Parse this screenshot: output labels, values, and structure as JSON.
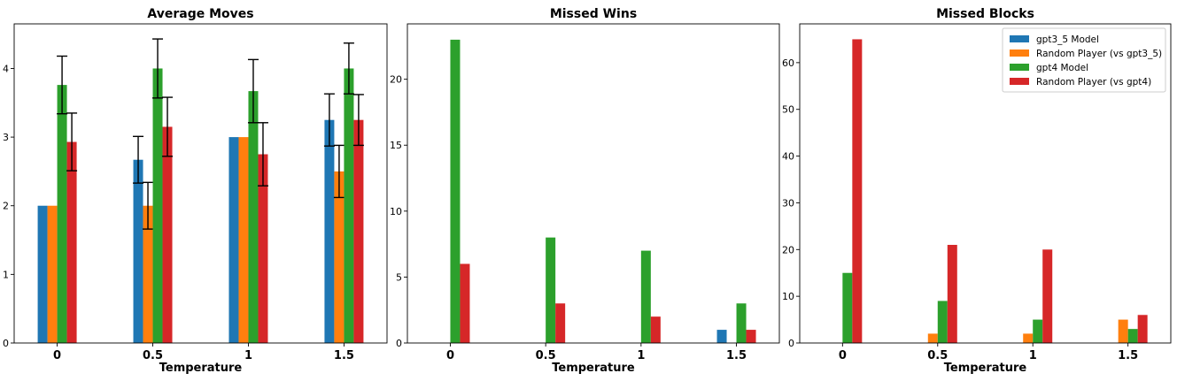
{
  "chart_data": [
    {
      "type": "bar",
      "title": "Average Moves",
      "xlabel": "Temperature",
      "ylabel": "",
      "categories": [
        "0",
        "0.5",
        "1",
        "1.5"
      ],
      "ylim": [
        0,
        4.65
      ],
      "yticks": [
        0,
        1,
        2,
        3,
        4
      ],
      "grid": false,
      "legend": "none",
      "series": [
        {
          "name": "gpt3_5 Model",
          "color": "#1f77b4",
          "values": [
            2.0,
            2.67,
            3.0,
            3.25
          ],
          "errors": [
            0,
            0.34,
            0,
            0.38
          ]
        },
        {
          "name": "Random Player (vs gpt3_5)",
          "color": "#ff7f0e",
          "values": [
            2.0,
            2.0,
            3.0,
            2.5
          ],
          "errors": [
            0,
            0.34,
            0,
            0.38
          ]
        },
        {
          "name": "gpt4 Model",
          "color": "#2ca02c",
          "values": [
            3.76,
            4.0,
            3.67,
            4.0
          ],
          "errors": [
            0.42,
            0.43,
            0.46,
            0.37
          ]
        },
        {
          "name": "Random Player (vs gpt4)",
          "color": "#d62728",
          "values": [
            2.93,
            3.15,
            2.75,
            3.25
          ],
          "errors": [
            0.42,
            0.43,
            0.46,
            0.37
          ]
        }
      ]
    },
    {
      "type": "bar",
      "title": "Missed Wins",
      "xlabel": "Temperature",
      "ylabel": "",
      "categories": [
        "0",
        "0.5",
        "1",
        "1.5"
      ],
      "ylim": [
        0,
        24.2
      ],
      "yticks": [
        0,
        5,
        10,
        15,
        20
      ],
      "grid": false,
      "legend": "none",
      "series": [
        {
          "name": "gpt3_5 Model",
          "color": "#1f77b4",
          "values": [
            0,
            0,
            0,
            1
          ]
        },
        {
          "name": "Random Player (vs gpt3_5)",
          "color": "#ff7f0e",
          "values": [
            0,
            0,
            0,
            0
          ]
        },
        {
          "name": "gpt4 Model",
          "color": "#2ca02c",
          "values": [
            23,
            8,
            7,
            3
          ]
        },
        {
          "name": "Random Player (vs gpt4)",
          "color": "#d62728",
          "values": [
            6,
            3,
            2,
            1
          ]
        }
      ]
    },
    {
      "type": "bar",
      "title": "Missed Blocks",
      "xlabel": "Temperature",
      "ylabel": "",
      "categories": [
        "0",
        "0.5",
        "1",
        "1.5"
      ],
      "ylim": [
        0,
        68.3
      ],
      "yticks": [
        0,
        10,
        20,
        30,
        40,
        50,
        60
      ],
      "grid": false,
      "legend": "top-right",
      "series": [
        {
          "name": "gpt3_5 Model",
          "color": "#1f77b4",
          "values": [
            0,
            0,
            0,
            0
          ]
        },
        {
          "name": "Random Player (vs gpt3_5)",
          "color": "#ff7f0e",
          "values": [
            0,
            2,
            2,
            5
          ]
        },
        {
          "name": "gpt4 Model",
          "color": "#2ca02c",
          "values": [
            15,
            9,
            5,
            3
          ]
        },
        {
          "name": "Random Player (vs gpt4)",
          "color": "#d62728",
          "values": [
            65,
            21,
            20,
            6
          ]
        }
      ]
    }
  ]
}
